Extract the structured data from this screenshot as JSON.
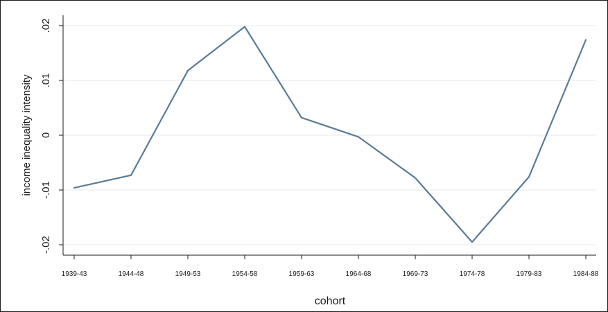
{
  "chart_data": {
    "type": "line",
    "xlabel": "cohort",
    "ylabel": "income inequality intensity",
    "categories": [
      "1939-43",
      "1944-48",
      "1949-53",
      "1954-58",
      "1959-63",
      "1964-68",
      "1969-73",
      "1974-78",
      "1979-83",
      "1984-88"
    ],
    "series": [
      {
        "values": [
          -0.0096,
          -0.0073,
          0.0118,
          0.0198,
          0.0032,
          -0.0003,
          -0.0078,
          -0.0195,
          -0.0076,
          0.0174
        ]
      }
    ],
    "yticks": [
      0.02,
      0.01,
      0,
      -0.01,
      -0.02
    ],
    "yticklabels": [
      ".02",
      ".01",
      "0",
      "-.01",
      "-.02"
    ],
    "ylim": [
      -0.0205,
      0.0205
    ],
    "grid": true,
    "legend": "none",
    "colors": {
      "line": "#5a7a96",
      "grid": "#e6ecef",
      "axis": "#1a1a1a"
    }
  }
}
